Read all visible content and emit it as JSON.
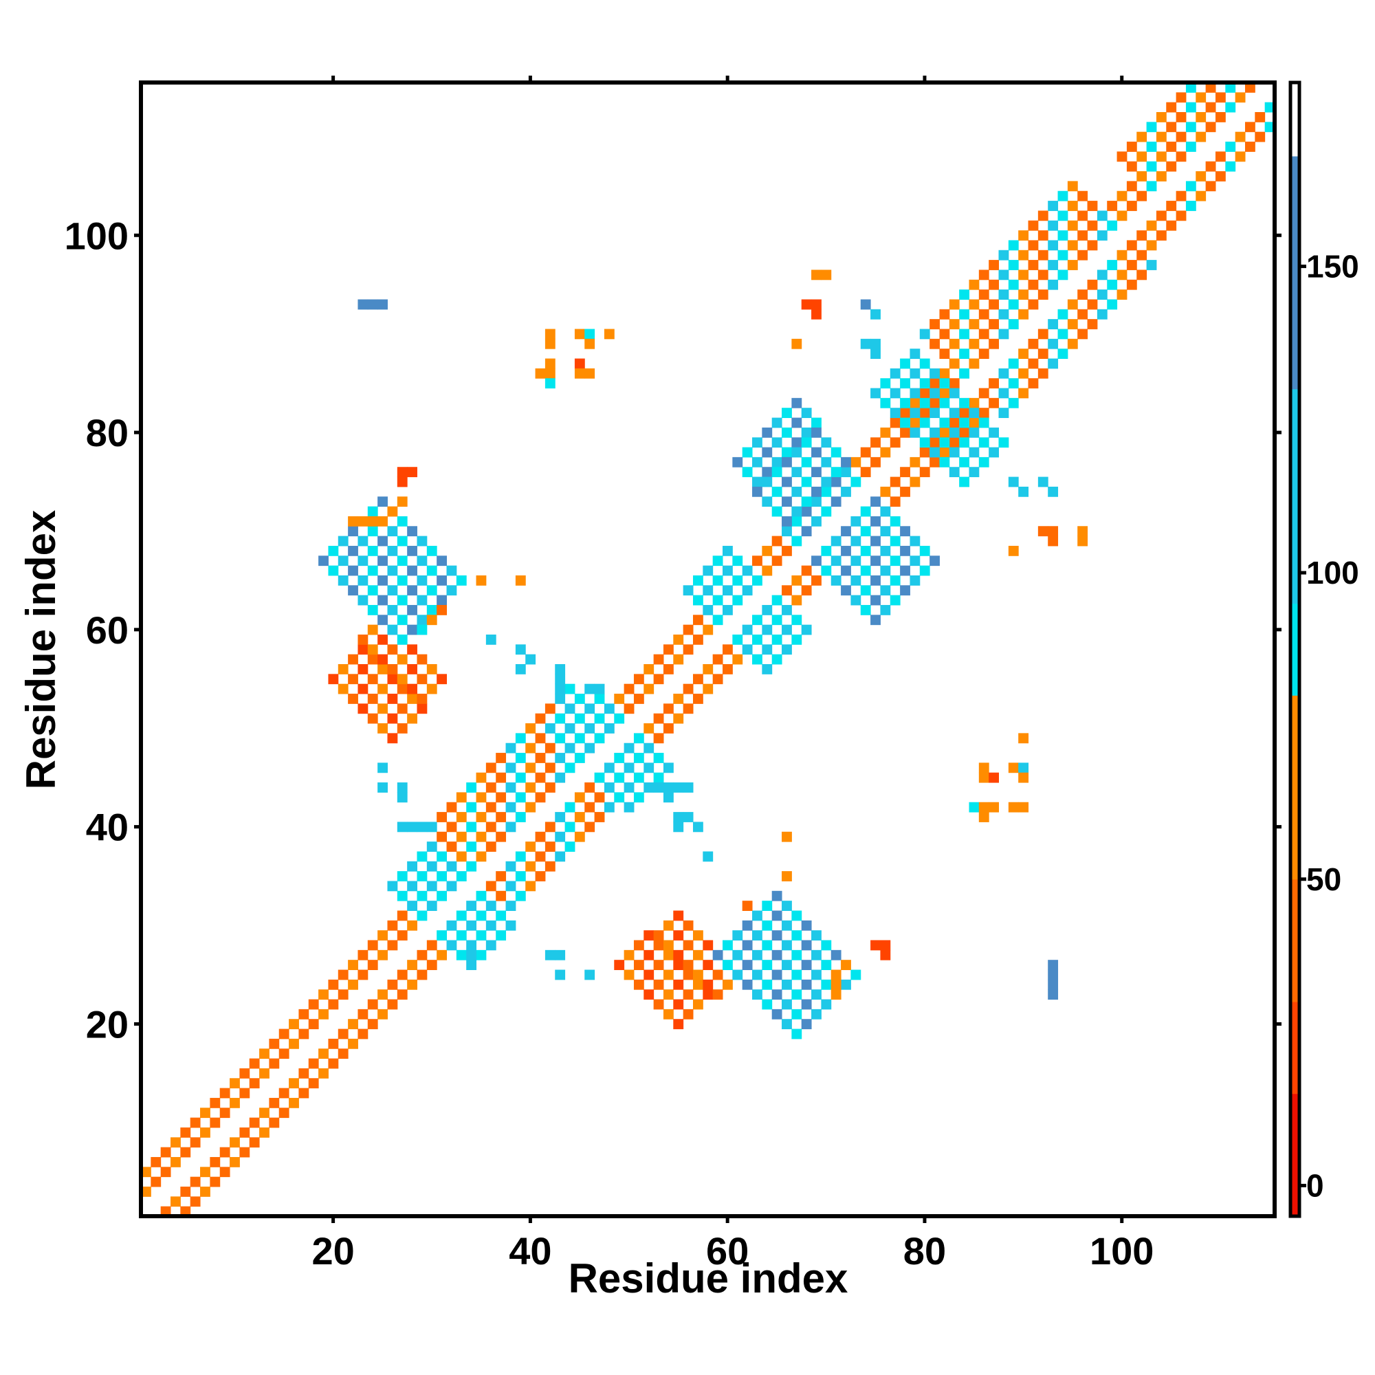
{
  "chart_data": {
    "type": "heatmap",
    "xlabel": "Residue index",
    "ylabel": "Residue index",
    "xlim": [
      1,
      115
    ],
    "ylim": [
      1,
      115
    ],
    "x_ticks": [
      20,
      40,
      60,
      80,
      100
    ],
    "y_ticks": [
      20,
      40,
      60,
      80,
      100
    ],
    "x_tick_labels": [
      "20",
      "40",
      "60",
      "80",
      "100"
    ],
    "y_tick_labels": [
      "20",
      "40",
      "60",
      "80",
      "100"
    ],
    "grid": false,
    "legend": "colorbar-right",
    "colorbar": {
      "range": [
        -5,
        180
      ],
      "ticks": [
        0,
        50,
        100,
        150
      ],
      "tick_labels": [
        "0",
        "50",
        "100",
        "150"
      ],
      "bins": [
        {
          "range": [
            -5,
            15
          ],
          "color": "#ee1100"
        },
        {
          "range": [
            15,
            30
          ],
          "color": "#ff4400"
        },
        {
          "range": [
            30,
            50
          ],
          "color": "#ff6a00"
        },
        {
          "range": [
            50,
            80
          ],
          "color": "#ff8c00"
        },
        {
          "range": [
            80,
            95
          ],
          "color": "#00e5ee"
        },
        {
          "range": [
            95,
            130
          ],
          "color": "#1ec8e8"
        },
        {
          "range": [
            130,
            168
          ],
          "color": "#4a8ac6"
        },
        {
          "range": [
            168,
            180
          ],
          "color": "#ffffff"
        }
      ]
    },
    "regions": [
      {
        "note": "diagonal band i,i+1..i+2",
        "from": [
          1,
          1
        ],
        "to": [
          115,
          115
        ],
        "width": 2,
        "values": [
          60,
          30,
          40
        ]
      },
      {
        "note": "helix 35-47",
        "from": [
          34,
          36
        ],
        "to": [
          48,
          50
        ],
        "width": 4,
        "values": [
          90,
          60,
          30,
          40,
          100
        ]
      },
      {
        "note": "helix 84-98",
        "from": [
          84,
          86
        ],
        "to": [
          99,
          101
        ],
        "width": 4,
        "values": [
          90,
          60,
          30,
          40,
          100
        ]
      },
      {
        "note": "helix 103-112",
        "from": [
          103,
          105
        ],
        "to": [
          114,
          116
        ],
        "width": 3,
        "values": [
          90,
          60,
          30,
          40
        ]
      },
      {
        "note": "sheet 23-28 x 52-58 (lower)",
        "from": [
          52,
          23
        ],
        "to": [
          58,
          28
        ],
        "width": 3,
        "values": [
          20,
          30,
          50
        ]
      },
      {
        "note": "sheet 23-28 x 52-58 (upper)",
        "from": [
          23,
          52
        ],
        "to": [
          28,
          58
        ],
        "width": 3,
        "values": [
          20,
          30,
          50
        ]
      },
      {
        "note": "anti 22-30 x 60-70 (lower)",
        "from": [
          62,
          30
        ],
        "to": [
          70,
          22
        ],
        "width": 3,
        "values": [
          150,
          110,
          90
        ]
      },
      {
        "note": "anti 22-30 x 60-70 (upper)",
        "from": [
          22,
          70
        ],
        "to": [
          30,
          62
        ],
        "width": 3,
        "values": [
          150,
          110,
          90
        ]
      },
      {
        "note": "anti 62-70 x 70-80",
        "from": [
          64,
          80
        ],
        "to": [
          70,
          72
        ],
        "width": 3,
        "values": [
          150,
          110,
          90
        ]
      },
      {
        "note": "anti 70-80 x 62-70",
        "from": [
          72,
          70
        ],
        "to": [
          78,
          64
        ],
        "width": 3,
        "values": [
          150,
          110,
          90
        ]
      },
      {
        "note": "cross 45-55",
        "from": [
          44,
          52
        ],
        "to": [
          52,
          44
        ],
        "width": 2,
        "values": [
          110,
          90
        ]
      },
      {
        "note": "cross 28-36",
        "from": [
          28,
          36
        ],
        "to": [
          36,
          28
        ],
        "width": 2,
        "values": [
          110,
          90
        ]
      },
      {
        "note": "cross 60-66",
        "from": [
          58,
          66
        ],
        "to": [
          66,
          58
        ],
        "width": 2,
        "values": [
          110,
          90
        ]
      },
      {
        "note": "cross 78-86",
        "from": [
          77,
          86
        ],
        "to": [
          86,
          77
        ],
        "width": 2,
        "values": [
          110,
          90
        ]
      }
    ],
    "cells": [
      [
        23,
        93,
        150
      ],
      [
        24,
        93,
        150
      ],
      [
        25,
        93,
        150
      ],
      [
        42,
        90,
        60
      ],
      [
        45,
        90,
        60
      ],
      [
        46,
        90,
        90
      ],
      [
        48,
        90,
        60
      ],
      [
        42,
        89,
        60
      ],
      [
        46,
        89,
        60
      ],
      [
        42,
        87,
        60
      ],
      [
        45,
        87,
        20
      ],
      [
        41,
        86,
        60
      ],
      [
        42,
        86,
        60
      ],
      [
        45,
        86,
        60
      ],
      [
        46,
        86,
        60
      ],
      [
        42,
        85,
        90
      ],
      [
        69,
        96,
        60
      ],
      [
        70,
        96,
        60
      ],
      [
        68,
        93,
        20
      ],
      [
        69,
        93,
        20
      ],
      [
        69,
        92,
        20
      ],
      [
        67,
        89,
        60
      ],
      [
        74,
        93,
        150
      ],
      [
        75,
        92,
        110
      ],
      [
        74,
        89,
        110
      ],
      [
        75,
        89,
        110
      ],
      [
        75,
        88,
        110
      ],
      [
        89,
        75,
        110
      ],
      [
        90,
        74,
        110
      ],
      [
        92,
        75,
        110
      ],
      [
        93,
        74,
        110
      ],
      [
        89,
        68,
        60
      ],
      [
        92,
        70,
        40
      ],
      [
        93,
        70,
        40
      ],
      [
        93,
        69,
        40
      ],
      [
        96,
        70,
        60
      ],
      [
        96,
        69,
        60
      ],
      [
        27,
        76,
        20
      ],
      [
        28,
        76,
        20
      ],
      [
        27,
        75,
        20
      ],
      [
        27,
        73,
        60
      ],
      [
        26,
        72,
        60
      ],
      [
        22,
        71,
        60
      ],
      [
        23,
        71,
        60
      ],
      [
        24,
        71,
        60
      ],
      [
        25,
        71,
        60
      ],
      [
        35,
        65,
        60
      ],
      [
        39,
        65,
        60
      ],
      [
        31,
        62,
        40
      ],
      [
        30,
        61,
        60
      ],
      [
        29,
        60,
        90
      ],
      [
        36,
        59,
        110
      ],
      [
        39,
        58,
        110
      ],
      [
        40,
        57,
        110
      ],
      [
        39,
        56,
        110
      ],
      [
        43,
        56,
        110
      ],
      [
        43,
        55,
        110
      ],
      [
        43,
        54,
        110
      ],
      [
        46,
        54,
        110
      ],
      [
        47,
        54,
        110
      ],
      [
        25,
        46,
        110
      ],
      [
        25,
        44,
        110
      ],
      [
        27,
        44,
        110
      ],
      [
        27,
        43,
        110
      ],
      [
        27,
        40,
        110
      ],
      [
        28,
        40,
        110
      ],
      [
        29,
        40,
        110
      ],
      [
        30,
        40,
        110
      ],
      [
        34,
        28,
        110
      ],
      [
        34,
        27,
        110
      ],
      [
        42,
        27,
        110
      ],
      [
        43,
        27,
        110
      ],
      [
        43,
        25,
        110
      ],
      [
        46,
        25,
        110
      ],
      [
        53,
        44,
        110
      ],
      [
        54,
        44,
        110
      ],
      [
        55,
        44,
        110
      ],
      [
        56,
        44,
        110
      ],
      [
        54,
        43,
        110
      ],
      [
        55,
        41,
        110
      ],
      [
        56,
        41,
        110
      ],
      [
        55,
        40,
        110
      ],
      [
        57,
        40,
        110
      ],
      [
        58,
        37,
        110
      ],
      [
        66,
        39,
        60
      ],
      [
        66,
        35,
        60
      ],
      [
        62,
        32,
        40
      ],
      [
        75,
        28,
        20
      ],
      [
        76,
        28,
        20
      ],
      [
        76,
        27,
        20
      ],
      [
        72,
        26,
        60
      ],
      [
        71,
        25,
        60
      ],
      [
        71,
        24,
        60
      ],
      [
        71,
        23,
        60
      ],
      [
        70,
        22,
        110
      ],
      [
        93,
        26,
        150
      ],
      [
        93,
        25,
        150
      ],
      [
        93,
        24,
        150
      ],
      [
        93,
        23,
        150
      ],
      [
        90,
        49,
        60
      ],
      [
        86,
        46,
        60
      ],
      [
        89,
        46,
        60
      ],
      [
        90,
        46,
        110
      ],
      [
        86,
        45,
        60
      ],
      [
        87,
        45,
        20
      ],
      [
        90,
        45,
        60
      ],
      [
        85,
        42,
        90
      ],
      [
        86,
        42,
        60
      ],
      [
        87,
        42,
        60
      ],
      [
        89,
        42,
        60
      ],
      [
        90,
        42,
        60
      ],
      [
        86,
        41,
        60
      ]
    ]
  }
}
